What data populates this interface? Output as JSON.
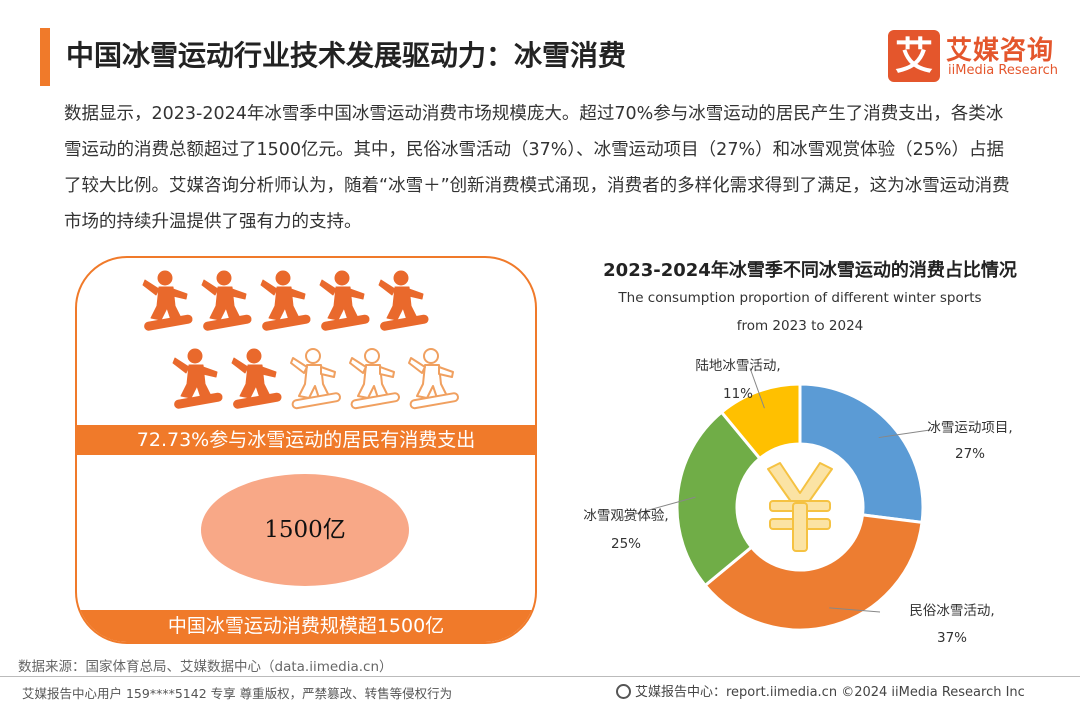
{
  "header": {
    "title": "中国冰雪运动行业技术发展驱动力：冰雪消费",
    "logo_mark": "艾",
    "logo_cn": "艾媒咨询",
    "logo_en": "iiMedia Research"
  },
  "paragraph": "数据显示，2023-2024年冰雪季中国冰雪运动消费市场规模庞大。超过70%参与冰雪运动的居民产生了消费支出，各类冰雪运动的消费总额超过了1500亿元。其中，民俗冰雪活动（37%）、冰雪运动项目（27%）和冰雪观赏体验（25%）占据了较大比例。艾媒咨询分析师认为，随着“冰雪＋”创新消费模式涌现，消费者的多样化需求得到了满足，这为冰雪运动消费市场的持续升温提供了强有力的支持。",
  "infographic": {
    "icons_total": 10,
    "icons_filled": 7,
    "filled_color": "#e9692c",
    "outline_color": "#f0a060",
    "band1_text": "72.73%参与冰雪运动的居民有消费支出",
    "ellipse_text": "1500亿",
    "band2_text": "中国冰雪运动消费规模超1500亿"
  },
  "chart_data": {
    "type": "pie",
    "title": "2023-2024年冰雪季不同冰雪运动的消费占比情况",
    "subtitle_line1": "The consumption proportion of different winter sports",
    "subtitle_line2": "from 2023 to 2024",
    "center_icon": "yuan-icon",
    "slices": [
      {
        "name": "冰雪运动项目,",
        "value": 27,
        "label": "27%",
        "color": "#5b9bd5"
      },
      {
        "name": "民俗冰雪活动,",
        "value": 37,
        "label": "37%",
        "color": "#ed7d31"
      },
      {
        "name": "冰雪观赏体验,",
        "value": 25,
        "label": "25%",
        "color": "#70ad47"
      },
      {
        "name": "陆地冰雪活动,",
        "value": 11,
        "label": "11%",
        "color": "#ffc000"
      }
    ]
  },
  "footer": {
    "source": "数据来源：国家体育总局、艾媒数据中心（data.iimedia.cn）",
    "left": "艾媒报告中心用户 159****5142 专享 尊重版权，严禁篡改、转售等侵权行为",
    "right": "艾媒报告中心：report.iimedia.cn  ©2024  iiMedia Research  Inc"
  }
}
